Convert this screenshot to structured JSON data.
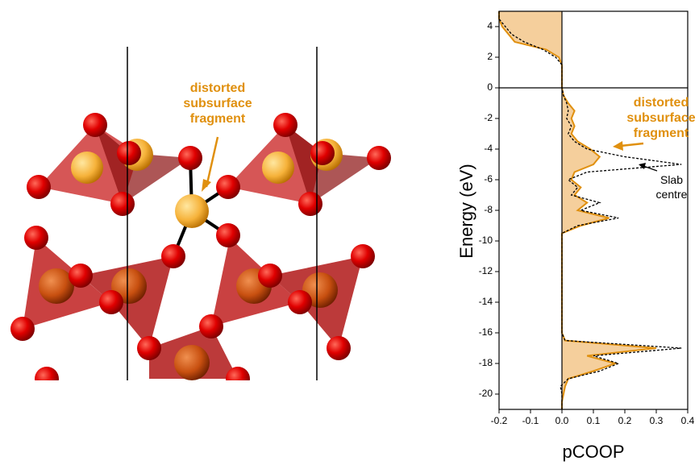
{
  "structure_label": "distorted subsurface fragment",
  "chart_data": {
    "type": "line",
    "ylabel": "Energy (eV)",
    "xlabel": "pCOOP",
    "y": [
      5,
      4.5,
      4,
      3.5,
      3,
      2.5,
      2,
      1.5,
      1,
      0.5,
      0,
      -0.5,
      -1,
      -1.5,
      -2,
      -2.5,
      -3,
      -3.5,
      -4,
      -4.5,
      -5,
      -5.5,
      -6,
      -6.5,
      -7,
      -7.5,
      -8,
      -8.5,
      -9,
      -9.5,
      -10,
      -10.5,
      -11,
      -11.5,
      -12,
      -12.5,
      -13,
      -13.5,
      -14,
      -14.5,
      -15,
      -15.5,
      -16,
      -16.5,
      -17,
      -17.5,
      -18,
      -18.5,
      -19,
      -19.5,
      -20,
      -20.5,
      -21
    ],
    "series": [
      {
        "name": "distorted subsurface fragment",
        "color": "#e0900f",
        "fill": "#f5cf9c",
        "values": [
          -0.2,
          -0.2,
          -0.19,
          -0.17,
          -0.15,
          -0.05,
          -0.01,
          0,
          0,
          0,
          0,
          0.005,
          0.02,
          0.04,
          0.03,
          0.04,
          0.03,
          0.05,
          0.09,
          0.12,
          0.1,
          0.04,
          0.03,
          0.06,
          0.04,
          0.08,
          0.05,
          0.15,
          0.06,
          0,
          0,
          0,
          0,
          0,
          0,
          0,
          0,
          0,
          0,
          0,
          0,
          0,
          0,
          0.01,
          0.3,
          0.08,
          0.17,
          0.1,
          0.02,
          0.01,
          0.005,
          0,
          0
        ]
      },
      {
        "name": "Slab centre",
        "color": "#000000",
        "dashed": true,
        "values": [
          -0.2,
          -0.2,
          -0.18,
          -0.16,
          -0.12,
          -0.06,
          -0.02,
          0,
          0,
          0,
          0,
          0.005,
          0.015,
          0.02,
          0.015,
          0.03,
          0.02,
          0.04,
          0.08,
          0.2,
          0.38,
          0.08,
          0.02,
          0.05,
          0.03,
          0.12,
          0.06,
          0.18,
          0.05,
          0,
          0,
          0,
          0,
          0,
          0,
          0,
          0,
          0,
          0,
          0,
          0,
          0,
          0,
          0.01,
          0.38,
          0.1,
          0.18,
          0.12,
          0.02,
          -0.005,
          0,
          0,
          0
        ]
      }
    ],
    "xlim": [
      -0.2,
      0.4
    ],
    "xticks": [
      -0.2,
      -0.1,
      {
        "value": 0,
        "label": "0.0"
      },
      0.1,
      0.2,
      0.3,
      0.4
    ],
    "ylim": [
      -21,
      5
    ],
    "yticks": [
      -20,
      -18,
      -16,
      -14,
      -12,
      -10,
      -8,
      -6,
      -4,
      -2,
      0,
      2,
      4
    ],
    "fermi_line": 0
  }
}
